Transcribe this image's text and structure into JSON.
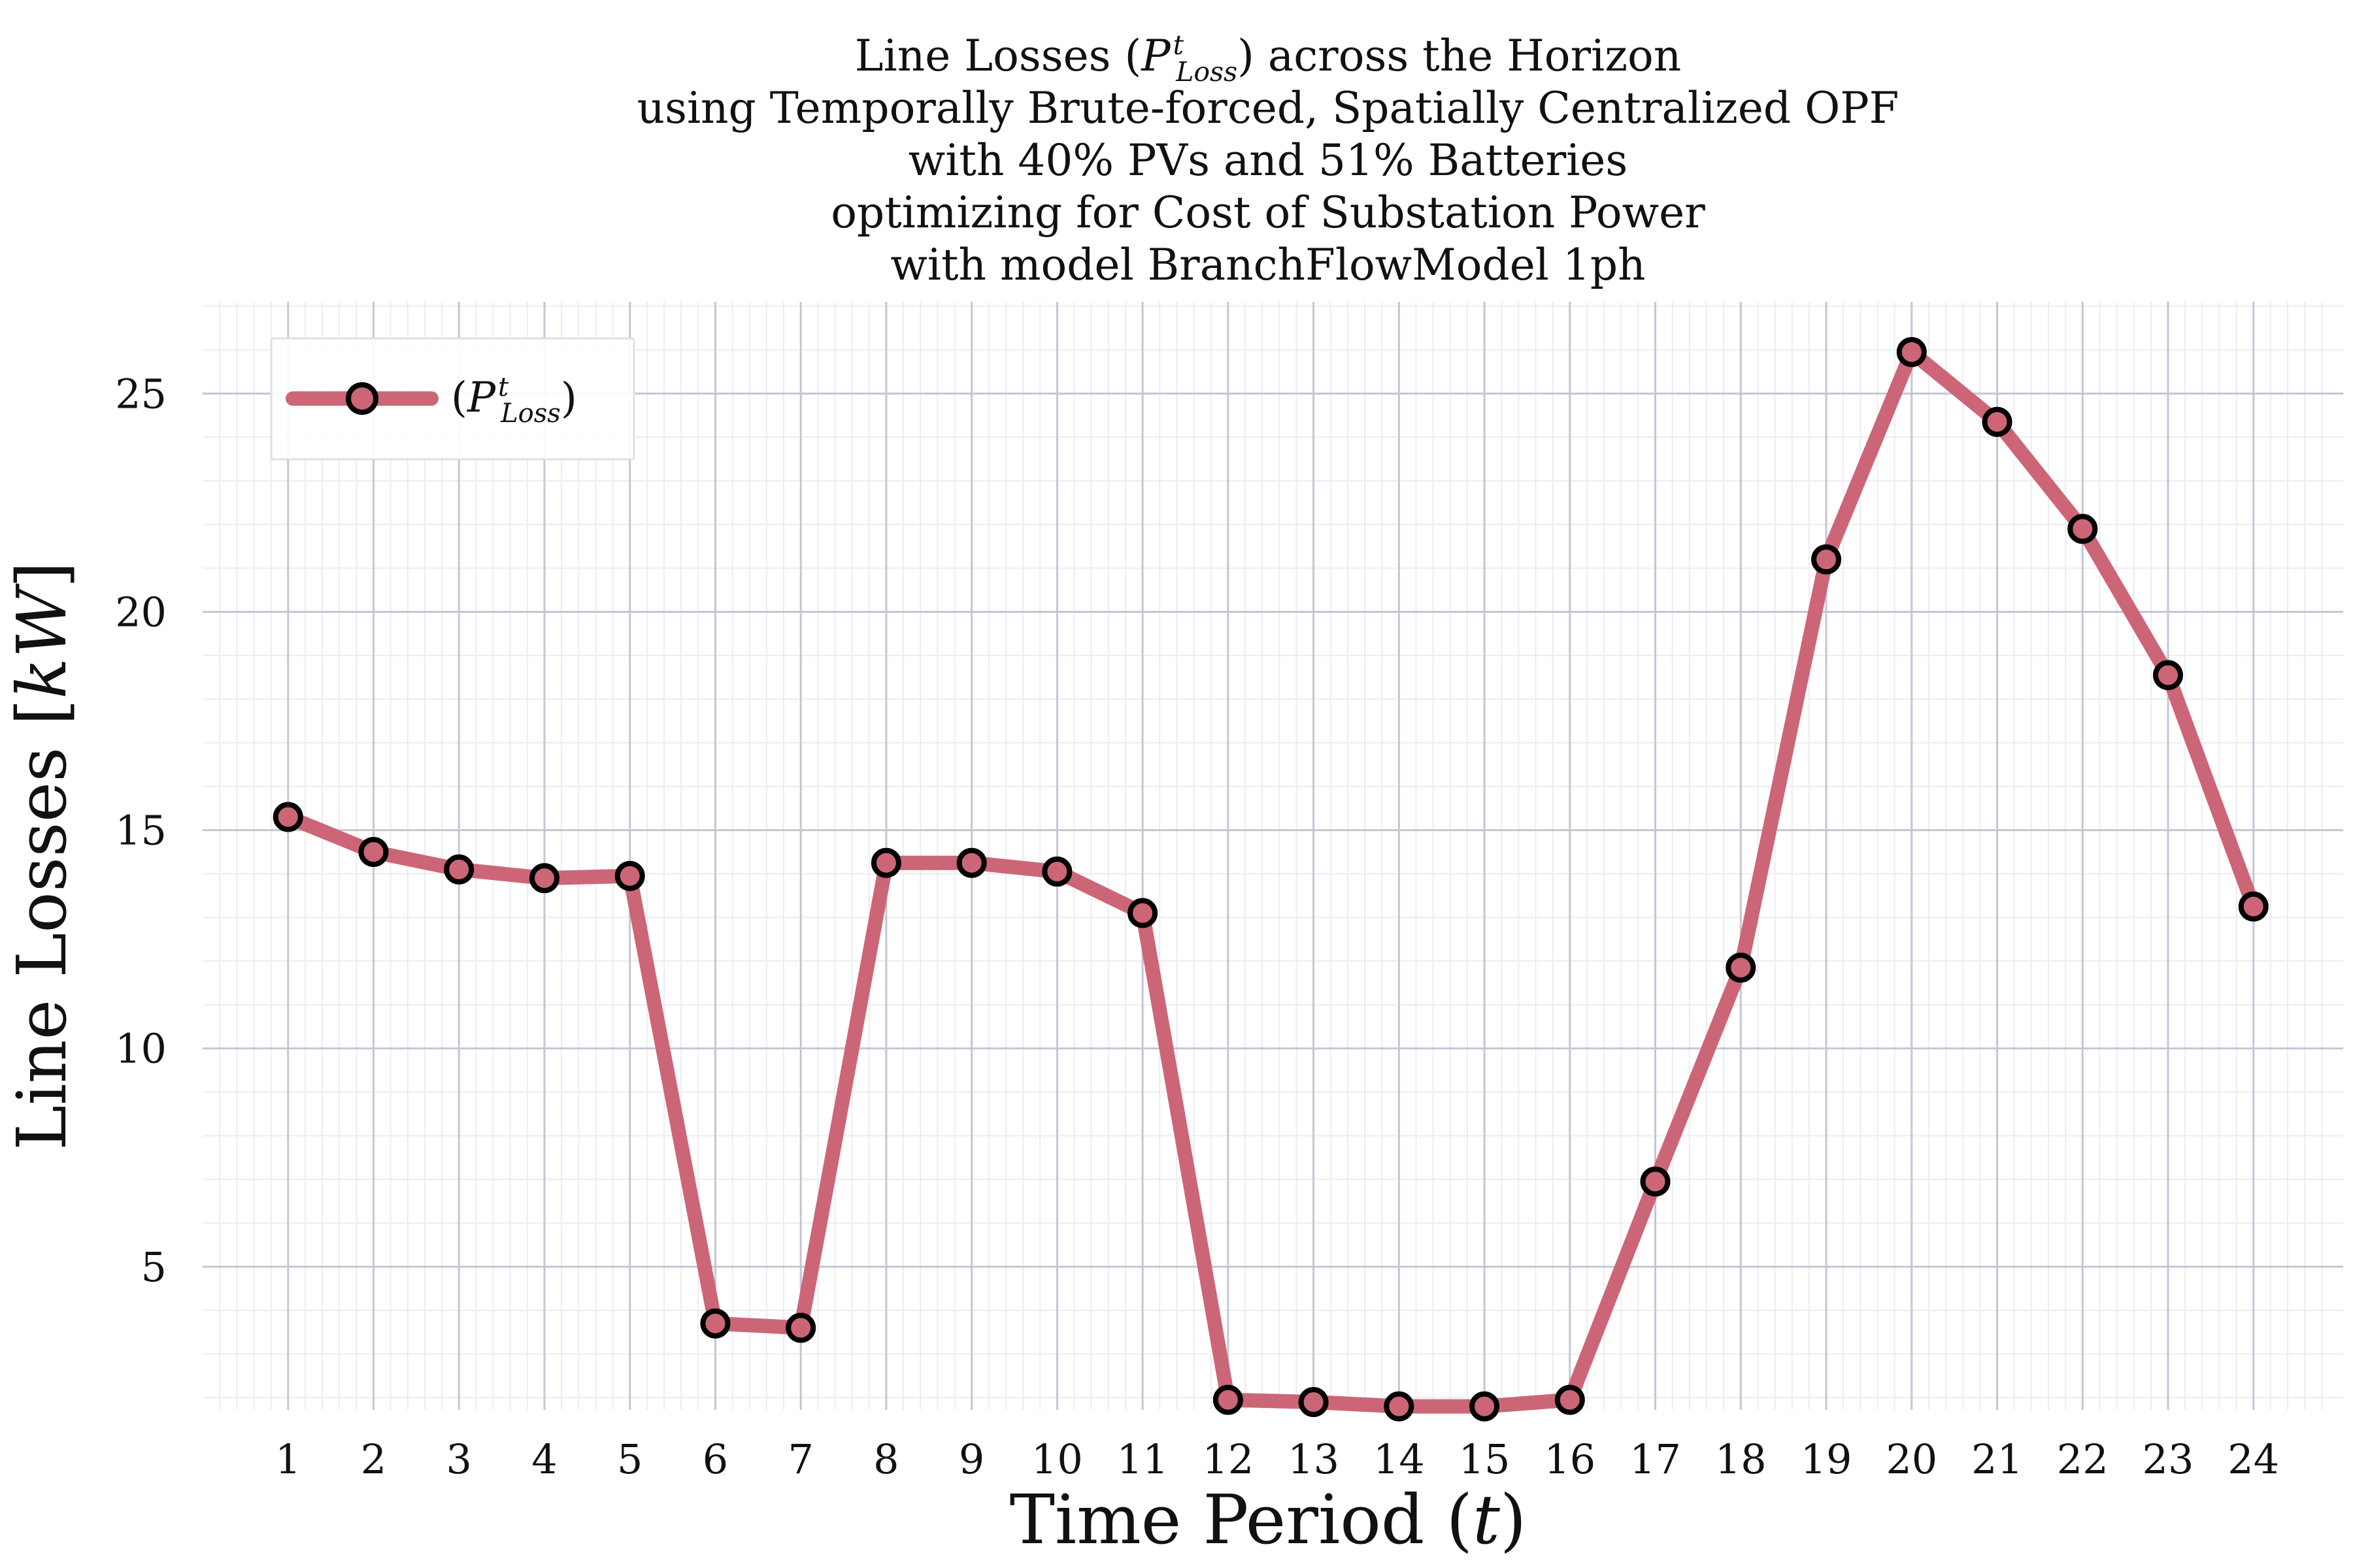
{
  "chart_data": {
    "type": "line",
    "title_lines": [
      "Line Losses (P^t_Loss) across the Horizon",
      "using Temporally Brute-forced, Spatially Centralized OPF",
      "with 40% PVs and 51% Batteries",
      "optimizing for Cost of Substation Power",
      "with model BranchFlowModel 1ph"
    ],
    "xlabel": "Time Period (t)",
    "ylabel": "Line Losses [kW]",
    "x": [
      1,
      2,
      3,
      4,
      5,
      6,
      7,
      8,
      9,
      10,
      11,
      12,
      13,
      14,
      15,
      16,
      17,
      18,
      19,
      20,
      21,
      22,
      23,
      24
    ],
    "xlim": [
      0,
      25.05
    ],
    "ylim": [
      1.72,
      27.1
    ],
    "yticks": [
      5,
      10,
      15,
      20,
      25
    ],
    "grid": true,
    "legend_position": "top-left",
    "series": [
      {
        "name": "(P^t_Loss)",
        "color": "#cc6677",
        "marker_edge_color": "#000000",
        "values": [
          15.3,
          14.5,
          14.1,
          13.9,
          13.95,
          3.7,
          3.6,
          14.25,
          14.25,
          14.05,
          13.1,
          1.95,
          1.9,
          1.8,
          1.8,
          1.95,
          6.95,
          11.85,
          21.2,
          25.95,
          24.35,
          21.9,
          18.55,
          13.25
        ]
      }
    ]
  }
}
